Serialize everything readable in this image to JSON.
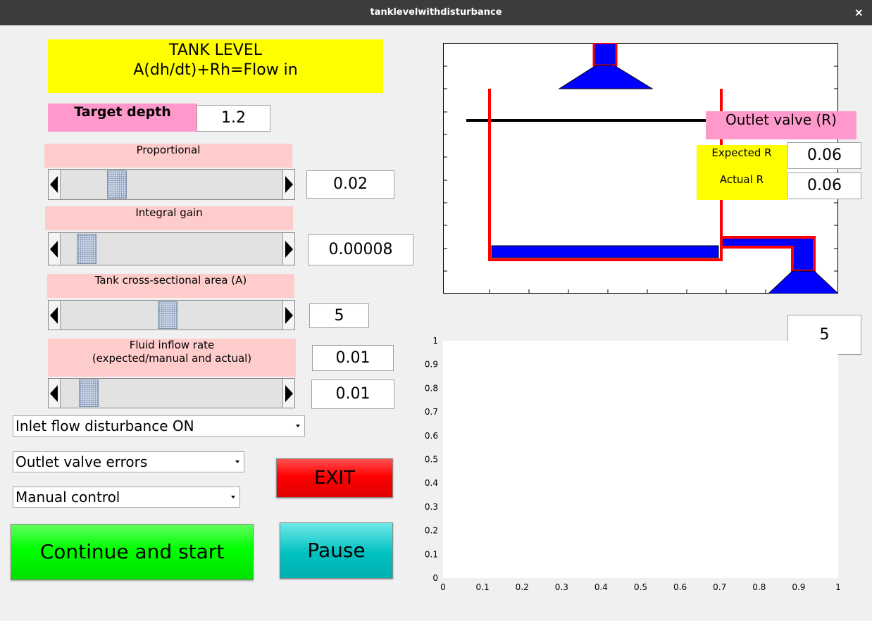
{
  "window": {
    "title": "tanklevelwithdisturbance",
    "close_icon": "×"
  },
  "header": {
    "line1": "TANK LEVEL",
    "line2": "A(dh/dt)+Rh=Flow in"
  },
  "target": {
    "label": "Target depth",
    "value": "1.2"
  },
  "proportional": {
    "label": "Proportional",
    "value": "0.02",
    "slider_fraction": 0.23
  },
  "integral": {
    "label": "Integral gain",
    "value": "0.00008",
    "slider_fraction": 0.08
  },
  "area": {
    "label": "Tank cross-sectional area (A)",
    "value": "5",
    "slider_fraction": 0.48
  },
  "inflow": {
    "label_line1": "Fluid inflow rate",
    "label_line2": "(expected/manual and actual)",
    "expected": "0.01",
    "actual": "0.01",
    "slider_fraction": 0.09
  },
  "dropdowns": {
    "disturbance": "Inlet flow disturbance ON",
    "valve_errors": "Outlet valve errors",
    "control_mode": "Manual control"
  },
  "buttons": {
    "exit": "EXIT",
    "continue": "Continue and start",
    "pause": "Pause"
  },
  "outlet": {
    "label": "Outlet valve (R)",
    "expected_label": "Expected R",
    "actual_label": "Actual R",
    "expected": "0.06",
    "actual": "0.06"
  },
  "time_box": "5",
  "colors": {
    "tank": "#ff0000",
    "fluid": "#0000ff",
    "exit": "#ff0000",
    "continue": "#00ff00",
    "pause": "#00c0c0"
  },
  "chart_data": {
    "type": "line",
    "series": [],
    "xlim": [
      0,
      1
    ],
    "ylim": [
      0,
      1
    ],
    "xticks": [
      "0",
      "0.1",
      "0.2",
      "0.3",
      "0.4",
      "0.5",
      "0.6",
      "0.7",
      "0.8",
      "0.9",
      "1"
    ],
    "yticks": [
      "0",
      "0.1",
      "0.2",
      "0.3",
      "0.4",
      "0.5",
      "0.6",
      "0.7",
      "0.8",
      "0.9",
      "1"
    ],
    "grid": false
  }
}
